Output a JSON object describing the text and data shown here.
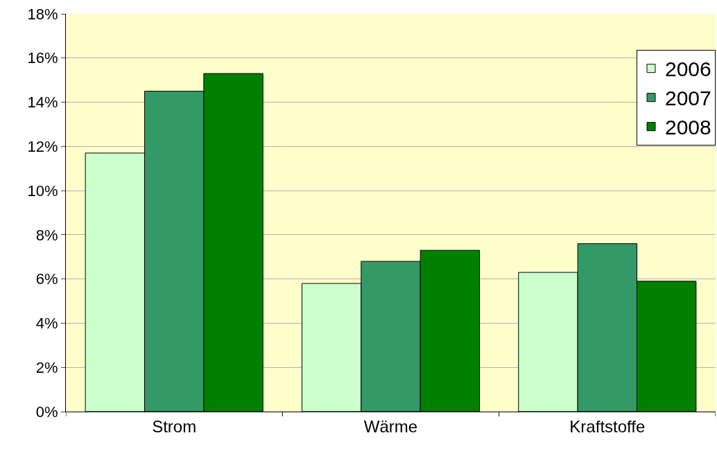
{
  "chart_data": {
    "type": "bar",
    "categories": [
      "Strom",
      "Wärme",
      "Kraftstoffe"
    ],
    "series": [
      {
        "name": "2006",
        "color": "#ccffcc",
        "values": [
          11.7,
          5.8,
          6.3
        ]
      },
      {
        "name": "2007",
        "color": "#339966",
        "values": [
          14.5,
          6.8,
          7.6
        ]
      },
      {
        "name": "2008",
        "color": "#008000",
        "values": [
          15.3,
          7.3,
          5.9
        ]
      }
    ],
    "ylim": [
      0,
      18
    ],
    "yticks": [
      {
        "value": 0,
        "label": "0%"
      },
      {
        "value": 2,
        "label": "2%"
      },
      {
        "value": 4,
        "label": "4%"
      },
      {
        "value": 6,
        "label": "6%"
      },
      {
        "value": 8,
        "label": "8%"
      },
      {
        "value": 10,
        "label": "10%"
      },
      {
        "value": 12,
        "label": "12%"
      },
      {
        "value": 14,
        "label": "14%"
      },
      {
        "value": 16,
        "label": "16%"
      },
      {
        "value": 18,
        "label": "18%"
      }
    ],
    "grid": "y",
    "legend": "top right"
  }
}
